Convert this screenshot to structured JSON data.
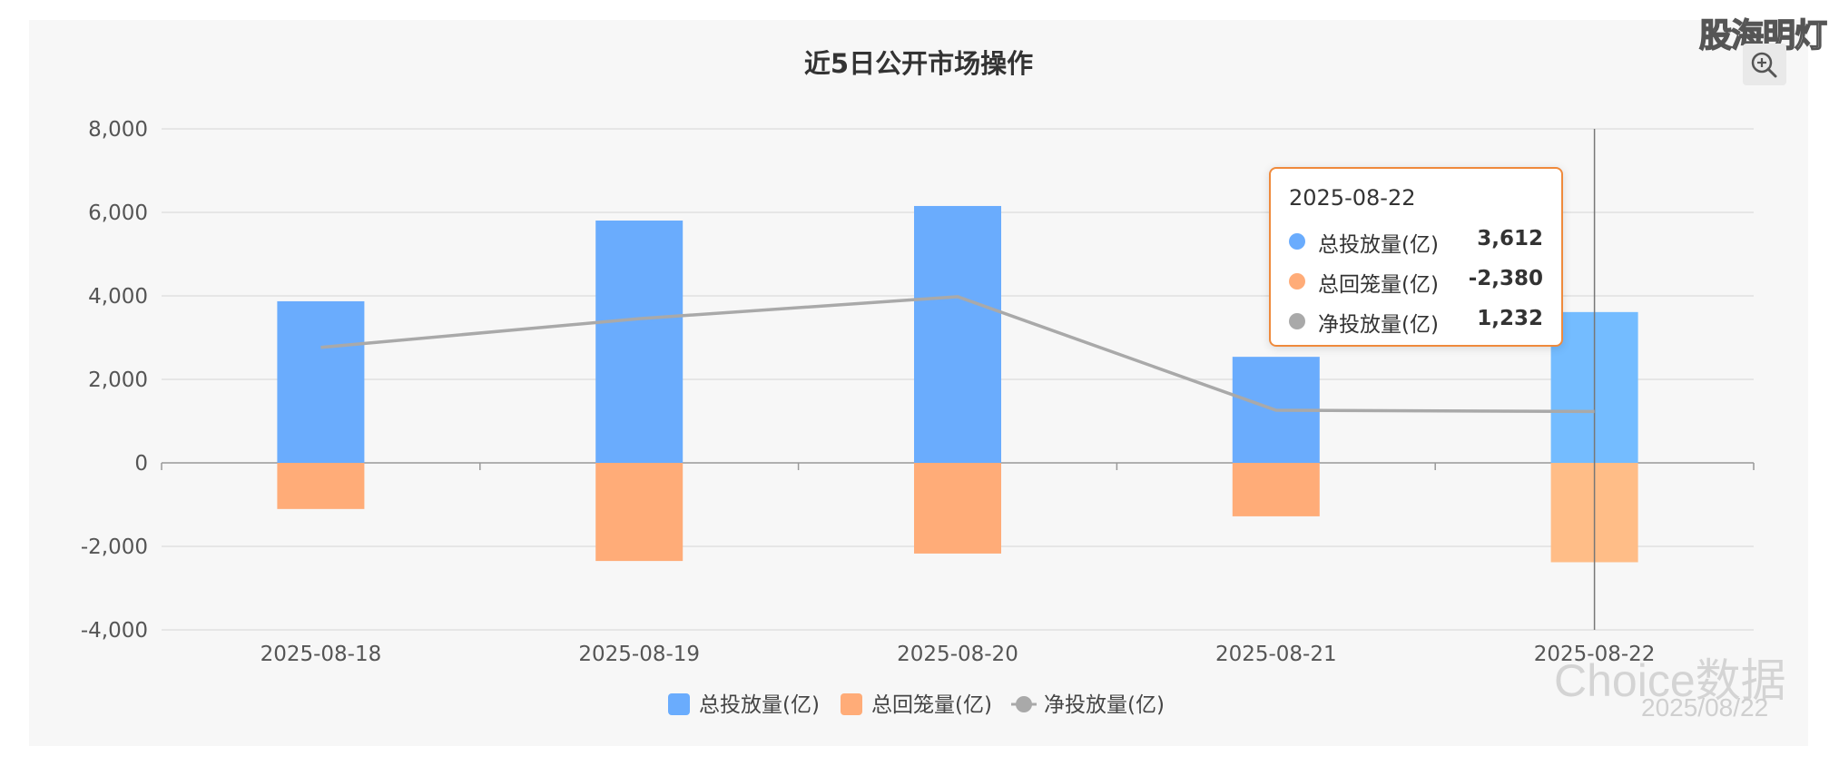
{
  "brand": "股海明灯",
  "chart_data": {
    "type": "bar",
    "title": "近5日公开市场操作",
    "categories": [
      "2025-08-18",
      "2025-08-19",
      "2025-08-20",
      "2025-08-21",
      "2025-08-22"
    ],
    "ylim": [
      -4000,
      8000
    ],
    "yticks": [
      8000,
      6000,
      4000,
      2000,
      0,
      -2000,
      -4000
    ],
    "ytick_labels": [
      "8,000",
      "6,000",
      "4,000",
      "2,000",
      "0",
      "-2,000",
      "-4,000"
    ],
    "grid": true,
    "legend_position": "bottom-center",
    "series": [
      {
        "name": "总投放量(亿)",
        "type": "bar",
        "color": "#6aacfd",
        "values": [
          3871,
          5804,
          6153,
          2540,
          3612
        ]
      },
      {
        "name": "总回笼量(亿)",
        "type": "bar",
        "color": "#ffac78",
        "values": [
          -1105,
          -2350,
          -2172,
          -1280,
          -2380
        ]
      },
      {
        "name": "净投放量(亿)",
        "type": "line",
        "color": "#a9a9a9",
        "values": [
          2766,
          3454,
          3981,
          1260,
          1232
        ]
      }
    ],
    "highlight_index": 4,
    "highlight_colors": {
      "bar_pos": "#74bcff",
      "bar_neg": "#ffbd87"
    }
  },
  "tooltip": {
    "date": "2025-08-22",
    "rows": [
      {
        "name": "总投放量(亿)",
        "value": "3,612",
        "color": "#6aacfd"
      },
      {
        "name": "总回笼量(亿)",
        "value": "-2,380",
        "color": "#ffac78"
      },
      {
        "name": "净投放量(亿)",
        "value": "1,232",
        "color": "#a9a9a9"
      }
    ]
  },
  "toolbar": {
    "zoom_icon": "zoom-in-icon"
  },
  "watermark": {
    "logo": "Choice数据",
    "date": "2025/08/22"
  }
}
